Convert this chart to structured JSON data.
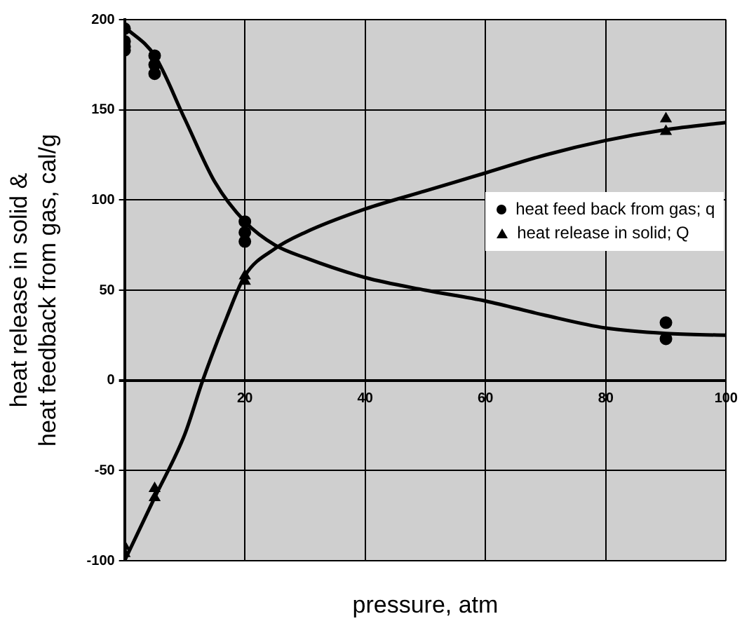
{
  "chart_data": {
    "type": "scatter",
    "xlabel": "pressure, atm",
    "ylabel": "heat release in solid &\nheat feedback from gas, cal/g",
    "xlim": [
      0,
      100
    ],
    "xticks": [
      {
        "value": 0,
        "label": null
      },
      20,
      40,
      60,
      80,
      100
    ],
    "ylim": [
      -100,
      200
    ],
    "yticks": [
      -100,
      -50,
      0,
      50,
      100,
      150,
      200
    ],
    "grid": true,
    "legend": "right",
    "series": [
      {
        "name": "heat feed back from gas; q",
        "color": "#000000",
        "marker": "circle",
        "x": [
          0,
          0,
          0,
          0,
          5,
          5,
          5,
          20,
          20,
          20,
          90,
          90
        ],
        "values": [
          195,
          188,
          185,
          183,
          180,
          175,
          170,
          88,
          82,
          77,
          32,
          23
        ]
      },
      {
        "name": "heat release in solid; Q",
        "color": "#000000",
        "marker": "triangle",
        "x": [
          0,
          0,
          5,
          5,
          20,
          20,
          90,
          90
        ],
        "values": [
          -92,
          -96,
          -60,
          -65,
          58,
          55,
          145,
          138
        ]
      },
      {
        "type": "line",
        "color": "#000000",
        "marker": "none",
        "x": [
          0,
          5,
          10,
          15,
          20,
          25,
          30,
          40,
          50,
          60,
          70,
          80,
          90,
          100
        ],
        "values": [
          196,
          180,
          145,
          110,
          88,
          75,
          68,
          57,
          50,
          44,
          36,
          29,
          26,
          25
        ]
      },
      {
        "type": "line",
        "color": "#000000",
        "marker": "none",
        "x": [
          0,
          5,
          10,
          13,
          17,
          20,
          25,
          30,
          40,
          50,
          60,
          70,
          80,
          90,
          100
        ],
        "values": [
          -100,
          -65,
          -30,
          0,
          35,
          58,
          73,
          82,
          95,
          105,
          115,
          125,
          133,
          139,
          143
        ]
      }
    ]
  }
}
